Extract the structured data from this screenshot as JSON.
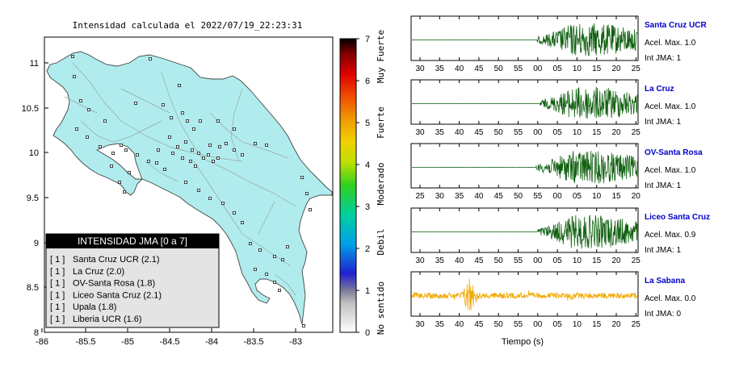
{
  "map": {
    "title": "Intensidad calculada el 2022/07/19_22:23:31",
    "x_ticks": [
      "-86",
      "-85.5",
      "-85",
      "-84.5",
      "-84",
      "-83.5",
      "-83"
    ],
    "y_ticks": [
      "11",
      "10.5",
      "10",
      "9.5",
      "9",
      "8.5",
      "8"
    ],
    "land_color": "#b0eced",
    "sea_color": "#ffffff"
  },
  "colorbar": {
    "values": [
      "0",
      "1",
      "2",
      "3",
      "4",
      "5",
      "6",
      "7"
    ],
    "labels": [
      "No sentido",
      "Debil",
      "Moderado",
      "Fuerte",
      "Muy Fuerte"
    ]
  },
  "legend": {
    "title": "INTENSIDAD JMA [0 a 7]",
    "items": [
      {
        "intensity": "[ 1 ]",
        "station": "Santa Cruz UCR (2.1)"
      },
      {
        "intensity": "[ 1 ]",
        "station": "La Cruz (2.0)"
      },
      {
        "intensity": "[ 1 ]",
        "station": "OV-Santa Rosa (1.8)"
      },
      {
        "intensity": "[ 1 ]",
        "station": "Liceo Santa Cruz (2.1)"
      },
      {
        "intensity": "[ 1 ]",
        "station": "Upala (1.8)"
      },
      {
        "intensity": "[ 1 ]",
        "station": "Liberia UCR (1.6)"
      }
    ]
  },
  "traces": {
    "x_axis_label": "Tiempo (s)",
    "green_color": "#106010",
    "orange_color": "#f0a800",
    "name_color": "#0000cc",
    "items": [
      {
        "name": "Santa Cruz UCR",
        "accel": "Acel. Max. 1.0",
        "int": "Int JMA: 1",
        "color": "green",
        "onset": 0.28,
        "ticks": [
          "30",
          "35",
          "40",
          "45",
          "50",
          "55",
          "00",
          "05",
          "10",
          "15",
          "20",
          "25"
        ]
      },
      {
        "name": "La Cruz",
        "accel": "Acel. Max. 1.0",
        "int": "Int JMA: 1",
        "color": "green",
        "onset": 0.34,
        "ticks": [
          "30",
          "35",
          "40",
          "45",
          "50",
          "55",
          "00",
          "05",
          "10",
          "15",
          "20",
          "25"
        ]
      },
      {
        "name": "OV-Santa Rosa",
        "accel": "Acel. Max. 1.0",
        "int": "Int JMA: 1",
        "color": "green",
        "onset": 0.25,
        "ticks": [
          "25",
          "30",
          "35",
          "40",
          "45",
          "50",
          "55",
          "00",
          "05",
          "10",
          "15",
          "20"
        ]
      },
      {
        "name": "Liceo Santa Cruz",
        "accel": "Acel. Max. 0.9",
        "int": "Int JMA: 1",
        "color": "green",
        "onset": 0.28,
        "ticks": [
          "30",
          "35",
          "40",
          "45",
          "50",
          "55",
          "00",
          "05",
          "10",
          "15",
          "20",
          "25"
        ]
      },
      {
        "name": "La Sabana",
        "accel": "Acel. Max. 0.0",
        "int": "Int JMA: 0",
        "color": "orange",
        "onset": 0.0,
        "ticks": [
          "30",
          "35",
          "40",
          "45",
          "50",
          "55",
          "00",
          "05",
          "10",
          "15",
          "20",
          "25"
        ]
      }
    ]
  }
}
